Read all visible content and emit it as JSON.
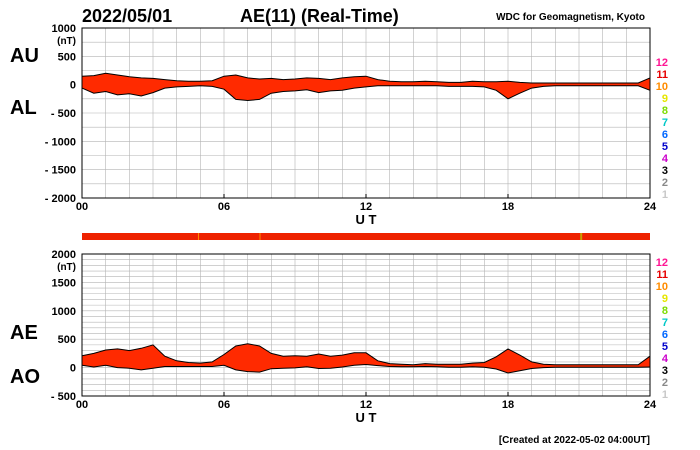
{
  "header": {
    "date": "2022/05/01",
    "title": "AE(11) (Real-Time)",
    "source": "WDC for Geomagnetism, Kyoto"
  },
  "footer": {
    "created": "[Created at 2022-05-02 04:00UT]"
  },
  "colors": {
    "fill": "#ff2a00",
    "line": "#000000",
    "grid": "#b4b4b4",
    "text": "#000000"
  },
  "station_legend": [
    {
      "label": "12",
      "color": "#ff1493"
    },
    {
      "label": "11",
      "color": "#e60000"
    },
    {
      "label": "10",
      "color": "#ff8c00"
    },
    {
      "label": "9",
      "color": "#e6e600"
    },
    {
      "label": "8",
      "color": "#7cdc00"
    },
    {
      "label": "7",
      "color": "#00c8c8"
    },
    {
      "label": "6",
      "color": "#0066ff"
    },
    {
      "label": "5",
      "color": "#0000cc"
    },
    {
      "label": "4",
      "color": "#cc00cc"
    },
    {
      "label": "3",
      "color": "#000000"
    },
    {
      "label": "2",
      "color": "#888888"
    },
    {
      "label": "1",
      "color": "#c8c8c8"
    }
  ],
  "chart_data": [
    {
      "type": "area",
      "name": "AU/AL",
      "upper_label": "AU",
      "lower_label": "AL",
      "unit": "(nT)",
      "xlabel": "U T",
      "xlim": [
        0,
        24
      ],
      "ylim": [
        -2000,
        1000
      ],
      "x_ticks": [
        0,
        6,
        12,
        18,
        24
      ],
      "x_tick_labels": [
        "00",
        "06",
        "12",
        "18",
        "24"
      ],
      "y_ticks": [
        1000,
        500,
        0,
        -500,
        -1000,
        -1500,
        -2000
      ],
      "y_tick_labels": [
        "1000",
        "500",
        "0",
        "- 500",
        "- 1000",
        "- 1500",
        "- 2000"
      ],
      "x": [
        0,
        0.5,
        1,
        1.5,
        2,
        2.5,
        3,
        3.5,
        4,
        4.5,
        5,
        5.5,
        6,
        6.5,
        7,
        7.5,
        8,
        8.5,
        9,
        9.5,
        10,
        10.5,
        11,
        11.5,
        12,
        12.5,
        13,
        13.5,
        14,
        14.5,
        15,
        15.5,
        16,
        16.5,
        17,
        17.5,
        18,
        18.5,
        19,
        19.5,
        20,
        20.5,
        21,
        21.5,
        22,
        22.5,
        23,
        23.5,
        24
      ],
      "series": [
        {
          "name": "AU",
          "values": [
            150,
            160,
            200,
            170,
            140,
            120,
            110,
            90,
            70,
            60,
            60,
            70,
            150,
            170,
            120,
            100,
            110,
            90,
            100,
            120,
            110,
            90,
            120,
            140,
            150,
            90,
            60,
            50,
            50,
            60,
            50,
            40,
            40,
            60,
            50,
            50,
            60,
            40,
            30,
            30,
            30,
            30,
            30,
            30,
            30,
            30,
            30,
            30,
            120
          ]
        },
        {
          "name": "AL",
          "values": [
            -60,
            -150,
            -120,
            -180,
            -160,
            -200,
            -140,
            -60,
            -40,
            -30,
            -20,
            -30,
            -80,
            -260,
            -280,
            -260,
            -150,
            -120,
            -110,
            -90,
            -140,
            -110,
            -100,
            -60,
            -40,
            -20,
            -20,
            -20,
            -20,
            -20,
            -20,
            -30,
            -30,
            -30,
            -40,
            -100,
            -250,
            -150,
            -60,
            -30,
            -20,
            -20,
            -20,
            -20,
            -20,
            -20,
            -20,
            -20,
            -100
          ]
        }
      ]
    },
    {
      "type": "area",
      "name": "AE/AO",
      "upper_label": "AE",
      "lower_label": "AO",
      "unit": "(nT)",
      "xlabel": "U T",
      "xlim": [
        0,
        24
      ],
      "ylim": [
        -500,
        2000
      ],
      "x_ticks": [
        0,
        6,
        12,
        18,
        24
      ],
      "x_tick_labels": [
        "00",
        "06",
        "12",
        "18",
        "24"
      ],
      "y_ticks": [
        2000,
        1500,
        1000,
        500,
        0,
        -500
      ],
      "y_tick_labels": [
        "2000",
        "1500",
        "1000",
        "500",
        "0",
        "- 500"
      ],
      "x": [
        0,
        0.5,
        1,
        1.5,
        2,
        2.5,
        3,
        3.5,
        4,
        4.5,
        5,
        5.5,
        6,
        6.5,
        7,
        7.5,
        8,
        8.5,
        9,
        9.5,
        10,
        10.5,
        11,
        11.5,
        12,
        12.5,
        13,
        13.5,
        14,
        14.5,
        15,
        15.5,
        16,
        16.5,
        17,
        17.5,
        18,
        18.5,
        19,
        19.5,
        20,
        20.5,
        21,
        21.5,
        22,
        22.5,
        23,
        23.5,
        24
      ],
      "series": [
        {
          "name": "AE",
          "values": [
            210,
            250,
            310,
            330,
            300,
            340,
            400,
            200,
            120,
            90,
            80,
            100,
            230,
            380,
            420,
            380,
            250,
            200,
            210,
            200,
            240,
            200,
            220,
            260,
            260,
            120,
            70,
            60,
            50,
            70,
            60,
            60,
            60,
            80,
            90,
            190,
            330,
            220,
            100,
            60,
            50,
            50,
            50,
            50,
            50,
            50,
            50,
            50,
            200
          ]
        },
        {
          "name": "AO",
          "values": [
            40,
            10,
            40,
            0,
            -10,
            -40,
            -10,
            20,
            20,
            20,
            20,
            20,
            40,
            -40,
            -70,
            -80,
            -20,
            -10,
            -5,
            15,
            -15,
            -10,
            10,
            40,
            55,
            35,
            20,
            15,
            15,
            20,
            15,
            5,
            5,
            15,
            5,
            -25,
            -95,
            -55,
            -15,
            0,
            5,
            5,
            5,
            5,
            5,
            5,
            5,
            5,
            10
          ]
        }
      ]
    }
  ]
}
